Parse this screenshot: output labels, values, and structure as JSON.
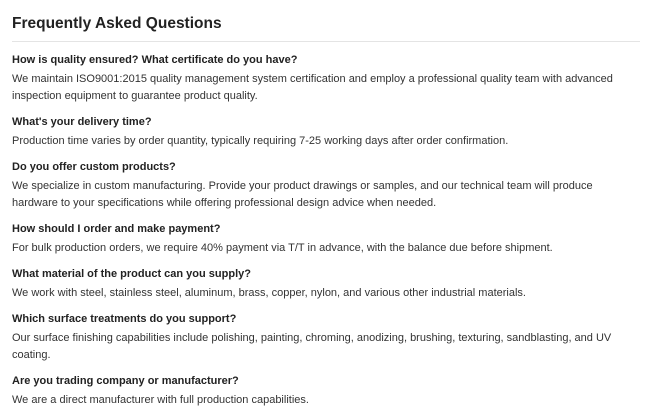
{
  "title": "Frequently Asked Questions",
  "faqs": [
    {
      "question": "How is quality ensured? What certificate do you have?",
      "answer": "We maintain ISO9001:2015 quality management system certification and employ a professional quality team with advanced inspection equipment to guarantee product quality."
    },
    {
      "question": "What's your delivery time?",
      "answer": "Production time varies by order quantity, typically requiring 7-25 working days after order confirmation."
    },
    {
      "question": "Do you offer custom products?",
      "answer": "We specialize in custom manufacturing. Provide your product drawings or samples, and our technical team will produce hardware to your specifications while offering professional design advice when needed."
    },
    {
      "question": "How should I order and make payment?",
      "answer": "For bulk production orders, we require 40% payment via T/T in advance, with the balance due before shipment."
    },
    {
      "question": "What material of the product can you supply?",
      "answer": "We work with steel, stainless steel, aluminum, brass, copper, nylon, and various other industrial materials."
    },
    {
      "question": "Which surface treatments do you support?",
      "answer": "Our surface finishing capabilities include polishing, painting, chroming, anodizing, brushing, texturing, sandblasting, and UV coating."
    },
    {
      "question": "Are you trading company or manufacturer?",
      "answer": "We are a direct manufacturer with full production capabilities."
    }
  ]
}
